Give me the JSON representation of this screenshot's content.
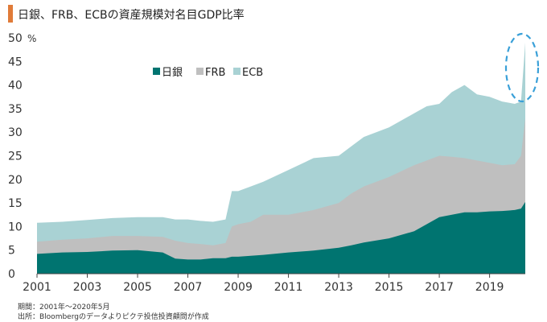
{
  "title": "日銀、FRB、ECBの資産規模対名目GDP比率",
  "notes": {
    "period": "期間：2001年～2020年5月",
    "source": "出所：Bloombergのデータよりピクテ投信投資顧問が作成"
  },
  "colors": {
    "boj": "#007470",
    "frb": "#bfbfbf",
    "ecb": "#a9d2d4",
    "highlight": "#3aa0d8"
  },
  "chart_data": {
    "type": "area",
    "stacked": true,
    "ylabel": "%",
    "ylim": [
      0,
      50
    ],
    "yticks": [
      "0",
      "5",
      "10",
      "15",
      "20",
      "25",
      "30",
      "35",
      "40",
      "45",
      "50"
    ],
    "xlim": [
      2001,
      2020.42
    ],
    "xticks": [
      "2001",
      "2003",
      "2005",
      "2007",
      "2009",
      "2011",
      "2013",
      "2015",
      "2017",
      "2019"
    ],
    "legend": {
      "position": "top-left",
      "entries": [
        "日銀",
        "FRB",
        "ECB"
      ]
    },
    "x": [
      2001,
      2002,
      2003,
      2004,
      2005,
      2006,
      2006.5,
      2007,
      2007.5,
      2008,
      2008.5,
      2008.75,
      2009,
      2009.5,
      2010,
      2011,
      2012,
      2013,
      2013.5,
      2014,
      2015,
      2016,
      2016.5,
      2017,
      2017.5,
      2018,
      2018.5,
      2019,
      2019.5,
      2020,
      2020.25,
      2020.42
    ],
    "series": [
      {
        "name": "日銀",
        "values": [
          4.2,
          4.5,
          4.6,
          4.9,
          5.0,
          4.5,
          3.2,
          3.0,
          3.0,
          3.3,
          3.3,
          3.6,
          3.6,
          3.8,
          4.0,
          4.5,
          4.9,
          5.5,
          6.0,
          6.6,
          7.5,
          9.0,
          10.5,
          12.0,
          12.5,
          13.0,
          13.0,
          13.2,
          13.3,
          13.5,
          13.8,
          15.2
        ]
      },
      {
        "name": "FRB",
        "values": [
          6.8,
          7.2,
          7.5,
          8.0,
          8.0,
          7.8,
          7.0,
          6.5,
          6.3,
          6.0,
          6.5,
          10.0,
          10.5,
          11.0,
          12.5,
          12.5,
          13.5,
          15.0,
          17.0,
          18.5,
          20.5,
          23.0,
          24.0,
          25.0,
          24.8,
          24.5,
          24.0,
          23.5,
          23.0,
          23.2,
          25.0,
          33.0
        ]
      },
      {
        "name": "ECB",
        "values": [
          10.8,
          11.0,
          11.4,
          11.8,
          12.0,
          12.0,
          11.5,
          11.5,
          11.2,
          11.0,
          11.5,
          17.5,
          17.5,
          18.5,
          19.5,
          22.0,
          24.5,
          25.0,
          27.0,
          29.0,
          31.0,
          34.0,
          35.5,
          36.0,
          38.5,
          40.0,
          38.0,
          37.5,
          36.5,
          36.0,
          36.5,
          49.0
        ]
      }
    ]
  }
}
